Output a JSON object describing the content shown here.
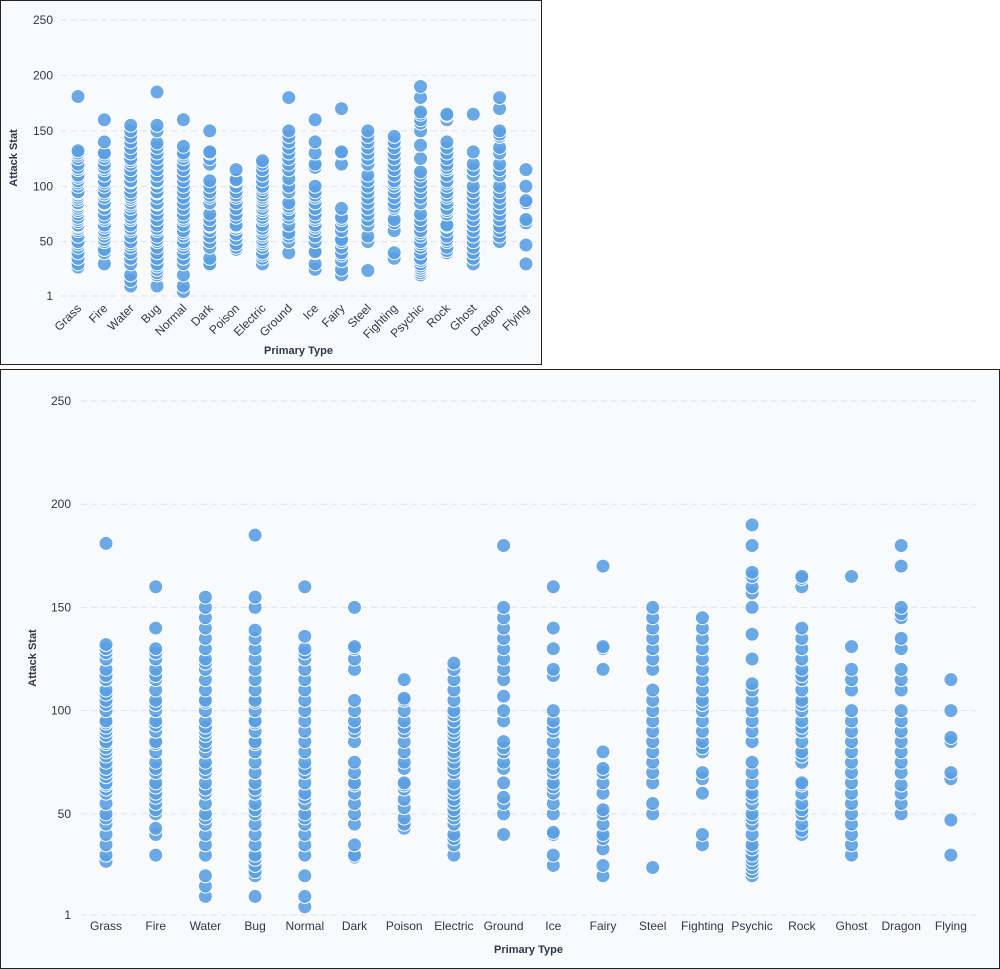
{
  "chart_data": [
    {
      "id": "chart-small",
      "type": "scatter",
      "title": "",
      "xlabel": "Primary Type",
      "ylabel": "Attack Stat",
      "x_tick_rotation_deg": -45,
      "ylim": [
        1,
        250
      ],
      "y_ticks": [
        1,
        50,
        100,
        150,
        200,
        250
      ],
      "y_tick_labels": [
        "1",
        "50",
        "100",
        "150",
        "200",
        "250"
      ],
      "grid": true,
      "color": "#5b9fe3",
      "categories": [
        "Grass",
        "Fire",
        "Water",
        "Bug",
        "Normal",
        "Dark",
        "Poison",
        "Electric",
        "Ground",
        "Ice",
        "Fairy",
        "Steel",
        "Fighting",
        "Psychic",
        "Rock",
        "Ghost",
        "Dragon",
        "Flying"
      ],
      "series_ref": "points"
    },
    {
      "id": "chart-large",
      "type": "scatter",
      "title": "",
      "xlabel": "Primary Type",
      "ylabel": "Attack Stat",
      "x_tick_rotation_deg": 0,
      "ylim": [
        1,
        250
      ],
      "y_ticks": [
        1,
        50,
        100,
        150,
        200,
        250
      ],
      "y_tick_labels": [
        "1",
        "50",
        "100",
        "150",
        "200",
        "250"
      ],
      "grid": true,
      "color": "#5b9fe3",
      "categories": [
        "Grass",
        "Fire",
        "Water",
        "Bug",
        "Normal",
        "Dark",
        "Poison",
        "Electric",
        "Ground",
        "Ice",
        "Fairy",
        "Steel",
        "Fighting",
        "Psychic",
        "Rock",
        "Ghost",
        "Dragon",
        "Flying"
      ],
      "series_ref": "points"
    }
  ],
  "points": {
    "Grass": [
      27,
      30,
      35,
      40,
      45,
      48,
      50,
      55,
      60,
      62,
      64,
      65,
      68,
      70,
      72,
      75,
      78,
      80,
      82,
      84,
      85,
      88,
      90,
      92,
      94,
      95,
      100,
      103,
      105,
      108,
      110,
      115,
      117,
      120,
      125,
      128,
      130,
      132,
      181
    ],
    "Fire": [
      30,
      40,
      43,
      50,
      52,
      55,
      58,
      60,
      63,
      65,
      70,
      72,
      75,
      80,
      84,
      85,
      90,
      93,
      95,
      100,
      103,
      105,
      110,
      115,
      117,
      120,
      125,
      128,
      130,
      140,
      160
    ],
    "Water": [
      10,
      15,
      20,
      30,
      35,
      40,
      45,
      48,
      50,
      55,
      60,
      62,
      65,
      70,
      72,
      75,
      80,
      83,
      85,
      88,
      90,
      92,
      95,
      100,
      104,
      105,
      110,
      115,
      120,
      123,
      125,
      130,
      135,
      140,
      145,
      150,
      155
    ],
    "Bug": [
      10,
      20,
      22,
      25,
      28,
      30,
      35,
      40,
      45,
      50,
      52,
      55,
      60,
      62,
      65,
      70,
      75,
      80,
      84,
      85,
      90,
      94,
      95,
      100,
      104,
      105,
      110,
      115,
      120,
      125,
      130,
      135,
      139,
      150,
      155,
      185
    ],
    "Normal": [
      5,
      10,
      20,
      30,
      35,
      40,
      45,
      48,
      50,
      55,
      58,
      60,
      65,
      70,
      72,
      75,
      80,
      85,
      90,
      95,
      100,
      105,
      110,
      115,
      120,
      125,
      128,
      130,
      136,
      160
    ],
    "Dark": [
      29,
      30,
      35,
      45,
      50,
      55,
      60,
      64,
      65,
      70,
      75,
      85,
      90,
      92,
      95,
      100,
      105,
      120,
      125,
      130,
      131,
      150
    ],
    "Poison": [
      43,
      45,
      48,
      53,
      57,
      62,
      64,
      65,
      72,
      75,
      80,
      85,
      90,
      92,
      95,
      100,
      105,
      106,
      115
    ],
    "Electric": [
      30,
      35,
      38,
      40,
      45,
      48,
      50,
      52,
      55,
      57,
      60,
      62,
      65,
      70,
      72,
      75,
      78,
      80,
      83,
      85,
      88,
      90,
      92,
      95,
      98,
      100,
      105,
      110,
      115,
      120,
      123
    ],
    "Ground": [
      40,
      50,
      55,
      58,
      65,
      72,
      75,
      80,
      82,
      85,
      95,
      100,
      107,
      115,
      120,
      125,
      130,
      135,
      140,
      145,
      150,
      180
    ],
    "Ice": [
      25,
      30,
      40,
      41,
      50,
      55,
      60,
      63,
      65,
      70,
      72,
      75,
      80,
      85,
      90,
      92,
      95,
      100,
      117,
      120,
      130,
      140,
      160
    ],
    "Fairy": [
      20,
      25,
      33,
      38,
      40,
      45,
      50,
      52,
      60,
      65,
      70,
      72,
      80,
      120,
      130,
      131,
      170
    ],
    "Steel": [
      24,
      50,
      55,
      65,
      70,
      75,
      80,
      85,
      90,
      95,
      100,
      105,
      110,
      120,
      125,
      130,
      135,
      140,
      145,
      150
    ],
    "Fighting": [
      35,
      40,
      60,
      67,
      70,
      80,
      82,
      85,
      90,
      95,
      100,
      103,
      105,
      110,
      115,
      120,
      125,
      130,
      135,
      140,
      145
    ],
    "Psychic": [
      20,
      22,
      24,
      26,
      28,
      30,
      33,
      35,
      40,
      45,
      48,
      50,
      55,
      58,
      60,
      65,
      70,
      75,
      85,
      90,
      95,
      100,
      105,
      110,
      113,
      125,
      137,
      150,
      157,
      160,
      165,
      167,
      180,
      190
    ],
    "Rock": [
      40,
      42,
      45,
      50,
      52,
      55,
      60,
      64,
      65,
      75,
      78,
      80,
      85,
      90,
      92,
      95,
      100,
      103,
      105,
      110,
      115,
      117,
      120,
      125,
      130,
      135,
      140,
      160,
      164,
      165
    ],
    "Ghost": [
      30,
      35,
      40,
      45,
      50,
      55,
      60,
      65,
      70,
      75,
      80,
      85,
      90,
      95,
      100,
      110,
      115,
      120,
      131,
      165
    ],
    "Dragon": [
      50,
      55,
      60,
      64,
      70,
      75,
      80,
      85,
      90,
      95,
      100,
      110,
      115,
      120,
      130,
      135,
      145,
      147,
      150,
      170,
      180
    ],
    "Flying": [
      30,
      47,
      67,
      70,
      85,
      87,
      100,
      115
    ]
  }
}
